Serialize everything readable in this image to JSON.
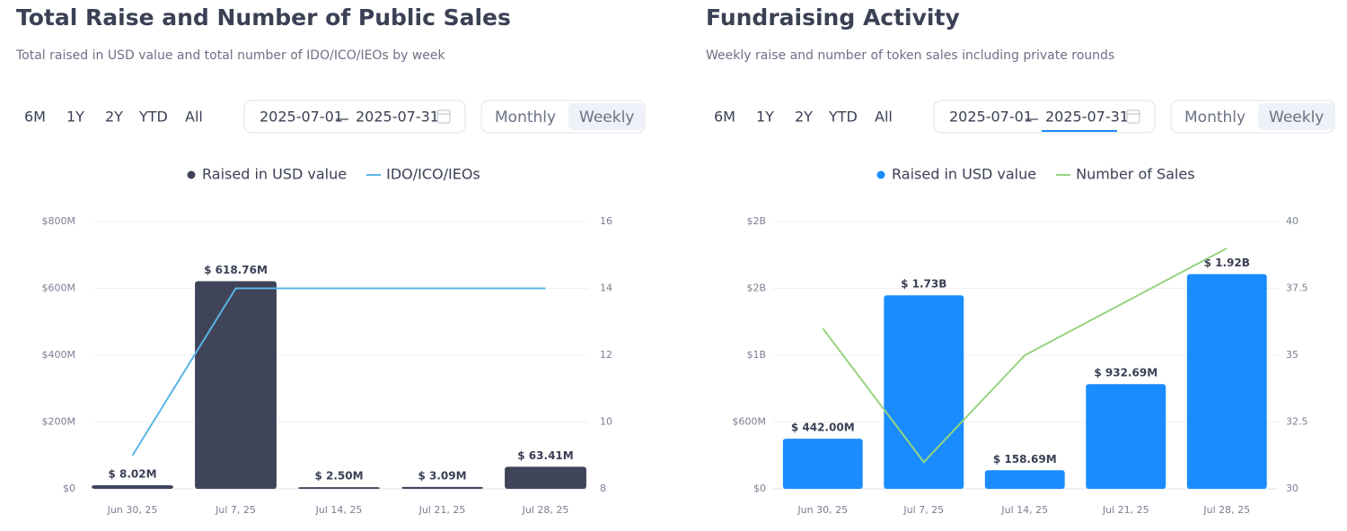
{
  "chart_data": [
    {
      "type": "bar",
      "title": "Total Raise and Number of Public Sales",
      "subtitle": "Total raised in USD value and total number of IDO/ICO/IEOs by week",
      "categories": [
        "Jun 30, 25",
        "Jul 7, 25",
        "Jul 14, 25",
        "Jul 21, 25",
        "Jul 28, 25"
      ],
      "series": [
        {
          "name": "Raised in USD value",
          "type": "bar",
          "color": "#3f4459",
          "values": [
            8.02,
            618.76,
            2.5,
            3.09,
            63.41
          ],
          "value_labels": [
            "$ 8.02M",
            "$ 618.76M",
            "$ 2.50M",
            "$ 3.09M",
            "$ 63.41M"
          ]
        },
        {
          "name": "IDO/ICO/IEOs",
          "type": "line",
          "axis": "y2",
          "color": "#5ab4e5",
          "values": [
            9,
            14,
            14,
            14,
            14
          ]
        }
      ],
      "ylim": [
        0,
        800
      ],
      "yticks": [
        {
          "value": 0,
          "label": "$0"
        },
        {
          "value": 200,
          "label": "$200M"
        },
        {
          "value": 400,
          "label": "$400M"
        },
        {
          "value": 600,
          "label": "$600M"
        },
        {
          "value": 800,
          "label": "$800M"
        }
      ],
      "y2lim": [
        8,
        16
      ],
      "y2ticks": [
        8,
        10,
        12,
        14,
        16
      ],
      "grid": true
    },
    {
      "type": "bar",
      "title": "Fundraising Activity",
      "subtitle": "Weekly raise and number of token sales including private rounds",
      "categories": [
        "Jun 30, 25",
        "Jul 7, 25",
        "Jul 14, 25",
        "Jul 21, 25",
        "Jul 28, 25"
      ],
      "series": [
        {
          "name": "Raised in USD value",
          "type": "bar",
          "color": "#1a8cff",
          "values": [
            442.0,
            1730,
            158.69,
            932.69,
            1920
          ],
          "value_labels": [
            "$ 442.00M",
            "$ 1.73B",
            "$ 158.69M",
            "$ 932.69M",
            "$ 1.92B"
          ]
        },
        {
          "name": "Number of Sales",
          "type": "line",
          "axis": "y2",
          "color": "#95d47f",
          "values": [
            36,
            31,
            35,
            37,
            39
          ]
        }
      ],
      "ylim": [
        0,
        2400
      ],
      "yticks": [
        {
          "value": 0,
          "label": "$0"
        },
        {
          "value": 600,
          "label": "$600M"
        },
        {
          "value": 1200,
          "label": "$1B"
        },
        {
          "value": 1800,
          "label": "$2B"
        },
        {
          "value": 2400,
          "label": "$2B"
        }
      ],
      "y2lim": [
        30,
        40
      ],
      "y2ticks": [
        30,
        32.5,
        35,
        37.5,
        40
      ],
      "grid": true
    }
  ],
  "controls": [
    {
      "ranges": [
        "6M",
        "1Y",
        "2Y",
        "YTD",
        "All"
      ],
      "date_from": "2025-07-01",
      "date_to": "2025-07-31",
      "views": [
        "Monthly",
        "Weekly"
      ],
      "selected_view": "Weekly"
    },
    {
      "ranges": [
        "6M",
        "1Y",
        "2Y",
        "YTD",
        "All"
      ],
      "date_from": "2025-07-01",
      "date_to": "2025-07-31",
      "views": [
        "Monthly",
        "Weekly"
      ],
      "selected_view": "Weekly"
    }
  ]
}
